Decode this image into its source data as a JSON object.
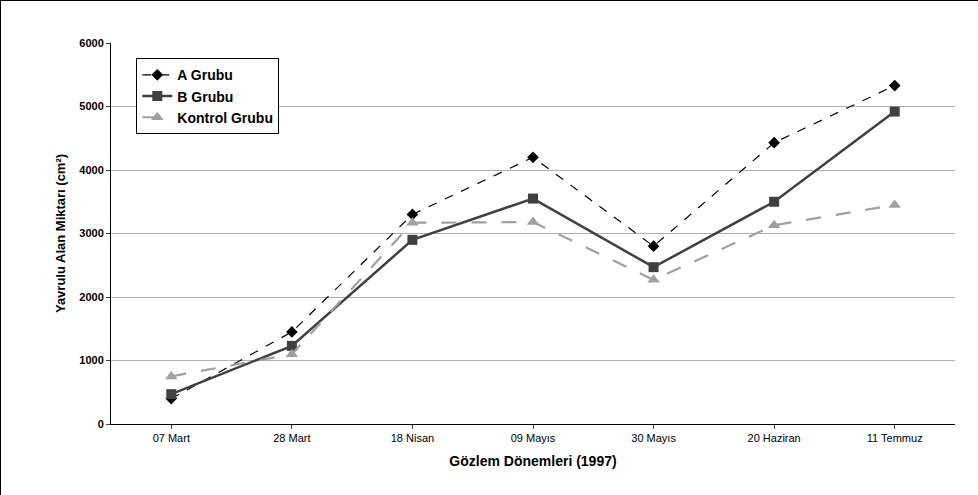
{
  "chart_data": {
    "type": "line",
    "x_label": "Gözlem Dönemleri (1997)",
    "y_label": "Yavrulu Alan Miktarı (cm²)",
    "categories": [
      "07 Mart",
      "28 Mart",
      "18 Nisan",
      "09 Mayıs",
      "30 Mayıs",
      "20 Haziran",
      "11 Temmuz"
    ],
    "series": [
      {
        "name": "A Grubu",
        "color": "#000000",
        "marker": "diamond",
        "line_style": "dash",
        "values": [
          400,
          1450,
          3300,
          4200,
          2800,
          4430,
          5330
        ]
      },
      {
        "name": "B Grubu",
        "color": "#404040",
        "marker": "square",
        "line_style": "solid",
        "values": [
          470,
          1230,
          2900,
          3550,
          2470,
          3500,
          4920
        ]
      },
      {
        "name": "Kontrol Grubu",
        "color": "#a0a0a0",
        "marker": "triangle-up",
        "line_style": "longdash",
        "values": [
          750,
          1100,
          3170,
          3180,
          2270,
          3130,
          3450
        ]
      }
    ],
    "ylim": [
      0,
      6000
    ],
    "yticks": [
      0,
      1000,
      2000,
      3000,
      4000,
      5000,
      6000
    ],
    "grid": true,
    "legend": "upper left"
  }
}
